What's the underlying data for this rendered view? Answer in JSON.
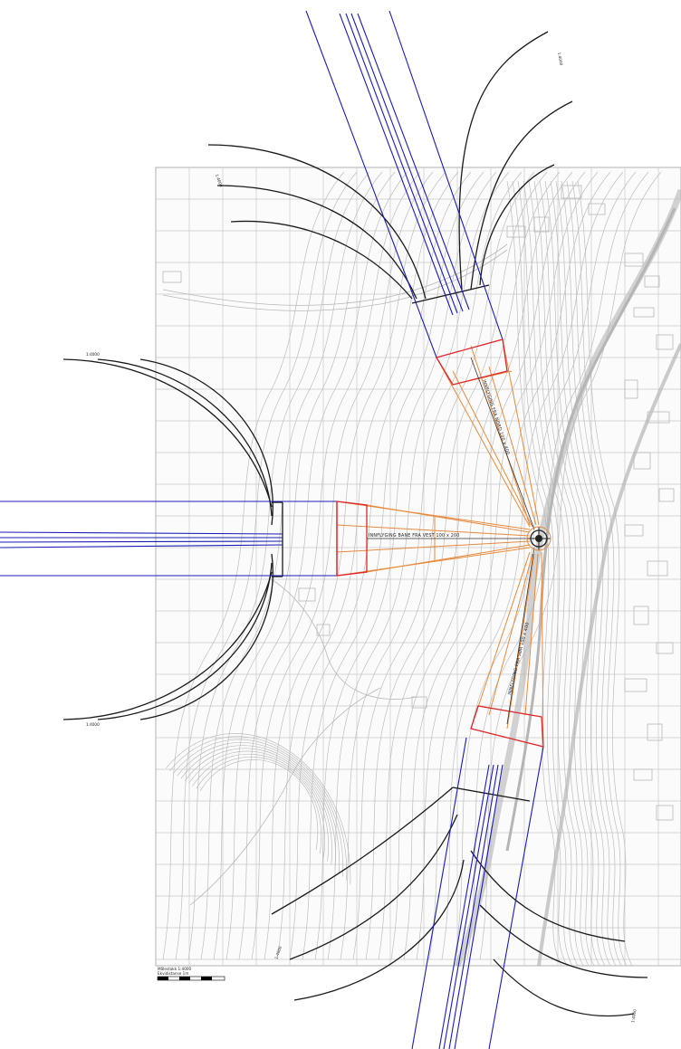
{
  "map": {
    "scale_text": "Målestokk 1:4000",
    "scale_subtext": "Ekvidistanse 1m",
    "runway_label_west": "INNFLYGING BANE FRA VEST 100 x 200",
    "runway_label_north": "INNFLYGING FRA NORD 100 x 400",
    "runway_label_south": "INNFLYGING FRA SØR 100 x 400",
    "arc_label_west_top": "1:4000",
    "arc_label_west_bottom": "1:4000",
    "arc_label_north_top": "1:4000",
    "arc_label_north_left": "1:4000",
    "arc_label_south_bottom": "1:4000",
    "arc_label_south_right": "1:4000",
    "colors": {
      "terrain": "#bdbdbd",
      "grid": "#c4c4c4",
      "approach_lines": "#1c1cb4",
      "surface_lines": "#e88a3c",
      "threshold_lines": "#e0262c",
      "arcs": "#1a1a1a",
      "helipad": "#222222"
    }
  }
}
